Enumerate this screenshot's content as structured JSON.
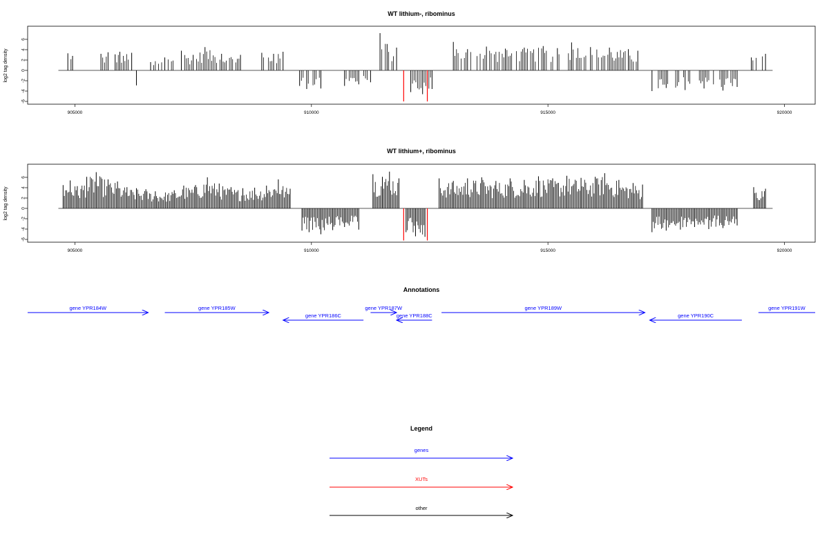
{
  "colors": {
    "genes": "#0000ff",
    "xuts": "#ff0000",
    "other": "#000000",
    "bars": "#000000"
  },
  "chart_data": [
    {
      "type": "bar",
      "title": "WT lithium-, ribominus",
      "ylabel": "log2 tag density",
      "xlim": [
        904000,
        920650
      ],
      "ylim": [
        -6,
        8
      ],
      "yticks": [
        6,
        4,
        2,
        0,
        -2,
        -4,
        -6
      ],
      "xticks": [
        905000,
        910000,
        915000,
        920000
      ],
      "xtick_labels": [
        "905000",
        "910000",
        "915000",
        "920000"
      ],
      "baseline": [
        904650,
        919750
      ],
      "series": [
        {
          "values": [
            [
              904850,
              3.3
            ],
            [
              904950,
              2.8
            ],
            [
              905550,
              3.2
            ],
            [
              905700,
              3.5
            ],
            [
              905850,
              3.1
            ],
            [
              905950,
              3.6
            ],
            [
              906200,
              3.4
            ],
            [
              906300,
              -2.9
            ],
            [
              906600,
              1.6
            ],
            [
              906900,
              2.5
            ],
            [
              907250,
              3.8
            ],
            [
              907500,
              3.0
            ],
            [
              907750,
              4.5
            ],
            [
              908100,
              3.2
            ],
            [
              908500,
              3.0
            ],
            [
              908950,
              3.4
            ],
            [
              909200,
              3.2
            ],
            [
              909400,
              3.6
            ],
            [
              909750,
              -3.0
            ],
            [
              909900,
              -3.6
            ],
            [
              910200,
              -3.5
            ],
            [
              910700,
              -3.0
            ],
            [
              911000,
              -2.7
            ],
            [
              911250,
              -2.3
            ],
            [
              911450,
              7.2
            ],
            [
              911600,
              5.1
            ],
            [
              911800,
              4.4
            ],
            [
              912100,
              -4.2
            ],
            [
              912350,
              -4.6
            ],
            [
              912550,
              -3.6
            ],
            [
              913000,
              5.5
            ],
            [
              913300,
              4.1
            ],
            [
              913700,
              4.6
            ],
            [
              914100,
              4.2
            ],
            [
              914500,
              4.4
            ],
            [
              914900,
              4.7
            ],
            [
              915200,
              4.3
            ],
            [
              915500,
              5.4
            ],
            [
              915900,
              4.5
            ],
            [
              916300,
              4.4
            ],
            [
              916700,
              4.1
            ],
            [
              916900,
              3.8
            ],
            [
              917200,
              -4.0
            ],
            [
              917500,
              -3.4
            ],
            [
              917900,
              -3.8
            ],
            [
              918300,
              -3.5
            ],
            [
              918700,
              -3.9
            ],
            [
              919000,
              -3.2
            ],
            [
              919300,
              2.5
            ],
            [
              919600,
              3.2
            ]
          ]
        }
      ],
      "red_bars": [
        [
          911950,
          -6.0
        ],
        [
          912450,
          -6.0
        ]
      ]
    },
    {
      "type": "bar",
      "title": "WT lithium+, ribominus",
      "ylabel": "log2 tag density",
      "xlim": [
        904000,
        920650
      ],
      "ylim": [
        -6,
        8
      ],
      "yticks": [
        6,
        4,
        2,
        0,
        -2,
        -4,
        -6
      ],
      "xticks": [
        905000,
        910000,
        915000,
        920000
      ],
      "xtick_labels": [
        "905000",
        "910000",
        "915000",
        "920000"
      ],
      "baseline": [
        904650,
        919750
      ],
      "series": [
        {
          "values": [
            [
              904750,
              4.5
            ],
            [
              904900,
              5.4
            ],
            [
              905050,
              4.3
            ],
            [
              905250,
              6.1
            ],
            [
              905450,
              7.0
            ],
            [
              905700,
              5.6
            ],
            [
              905900,
              5.2
            ],
            [
              906100,
              4.1
            ],
            [
              906300,
              3.9
            ],
            [
              906500,
              3.7
            ],
            [
              906700,
              3.3
            ],
            [
              907100,
              3.5
            ],
            [
              907300,
              4.4
            ],
            [
              907550,
              4.5
            ],
            [
              907800,
              6.0
            ],
            [
              908050,
              4.8
            ],
            [
              908300,
              4.1
            ],
            [
              908550,
              3.9
            ],
            [
              908800,
              4.0
            ],
            [
              909050,
              4.4
            ],
            [
              909300,
              5.6
            ],
            [
              909550,
              3.8
            ],
            [
              909800,
              -4.3
            ],
            [
              909950,
              -4.6
            ],
            [
              910200,
              -5.0
            ],
            [
              910450,
              -4.2
            ],
            [
              910700,
              -3.6
            ],
            [
              911000,
              -4.1
            ],
            [
              911300,
              6.6
            ],
            [
              911500,
              6.1
            ],
            [
              911650,
              7.1
            ],
            [
              911850,
              5.8
            ],
            [
              912000,
              -4.6
            ],
            [
              912200,
              -5.4
            ],
            [
              912400,
              -5.5
            ],
            [
              912700,
              5.8
            ],
            [
              913000,
              5.3
            ],
            [
              913300,
              5.8
            ],
            [
              913600,
              6.0
            ],
            [
              913900,
              5.3
            ],
            [
              914200,
              5.8
            ],
            [
              914500,
              5.5
            ],
            [
              914800,
              6.2
            ],
            [
              915100,
              5.8
            ],
            [
              915400,
              6.3
            ],
            [
              915700,
              5.9
            ],
            [
              916000,
              6.1
            ],
            [
              916200,
              6.8
            ],
            [
              916500,
              5.5
            ],
            [
              916800,
              4.9
            ],
            [
              917000,
              4.6
            ],
            [
              917200,
              -4.6
            ],
            [
              917500,
              -4.3
            ],
            [
              917800,
              -4.1
            ],
            [
              918100,
              -3.6
            ],
            [
              918400,
              -4.0
            ],
            [
              918700,
              -3.8
            ],
            [
              919000,
              -3.3
            ],
            [
              919350,
              4.1
            ],
            [
              919600,
              3.8
            ]
          ]
        }
      ],
      "red_bars": [
        [
          911950,
          -6.2
        ],
        [
          912450,
          -6.2
        ]
      ]
    }
  ],
  "annotations": {
    "title": "Annotations",
    "genes": [
      {
        "label": "gene YPR184W",
        "start": 904000,
        "end": 906550,
        "strand": "+",
        "row": 0
      },
      {
        "label": "gene YPR185W",
        "start": 906900,
        "end": 909100,
        "strand": "+",
        "row": 0
      },
      {
        "label": "gene YPR186C",
        "start": 909400,
        "end": 911100,
        "strand": "-",
        "row": 1
      },
      {
        "label": "gene YPR187W",
        "start": 911250,
        "end": 911800,
        "strand": "+",
        "row": 0
      },
      {
        "label": "gene YPR188C",
        "start": 911800,
        "end": 912550,
        "strand": "-",
        "row": 1
      },
      {
        "label": "gene YPR189W",
        "start": 912750,
        "end": 917050,
        "strand": "+",
        "row": 0
      },
      {
        "label": "gene YPR190C",
        "start": 917150,
        "end": 919100,
        "strand": "-",
        "row": 1
      },
      {
        "label": "gene YPR191W",
        "start": 919450,
        "end": 920650,
        "strand": "+",
        "row": 0
      }
    ]
  },
  "legend": {
    "title": "Legend",
    "items": [
      {
        "label": "genes",
        "color": "#0000ff"
      },
      {
        "label": "XUTs",
        "color": "#ff0000"
      },
      {
        "label": "other",
        "color": "#000000"
      }
    ]
  }
}
